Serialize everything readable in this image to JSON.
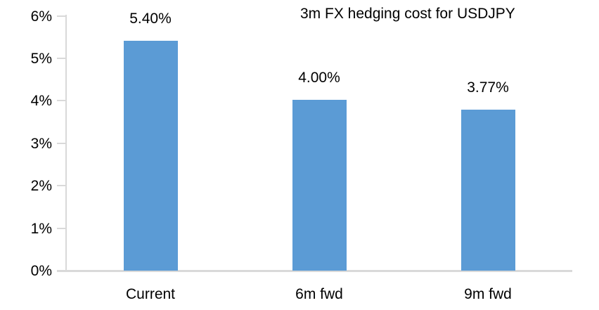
{
  "chart_data": {
    "type": "bar",
    "title": "3m FX hedging cost for USDJPY",
    "categories": [
      "Current",
      "6m fwd",
      "9m fwd"
    ],
    "values": [
      5.4,
      4.0,
      3.77
    ],
    "value_labels": [
      "5.40%",
      "4.00%",
      "3.77%"
    ],
    "xlabel": "",
    "ylabel": "",
    "ylim": [
      0,
      6
    ],
    "ytick_step": 1,
    "ytick_labels": [
      "0%",
      "1%",
      "2%",
      "3%",
      "4%",
      "5%",
      "6%"
    ],
    "grid": false,
    "legend": false,
    "colors": {
      "bar": "#5B9BD5",
      "axis": "#D9D9D9",
      "text": "#000000",
      "background": "#FFFFFF"
    }
  }
}
